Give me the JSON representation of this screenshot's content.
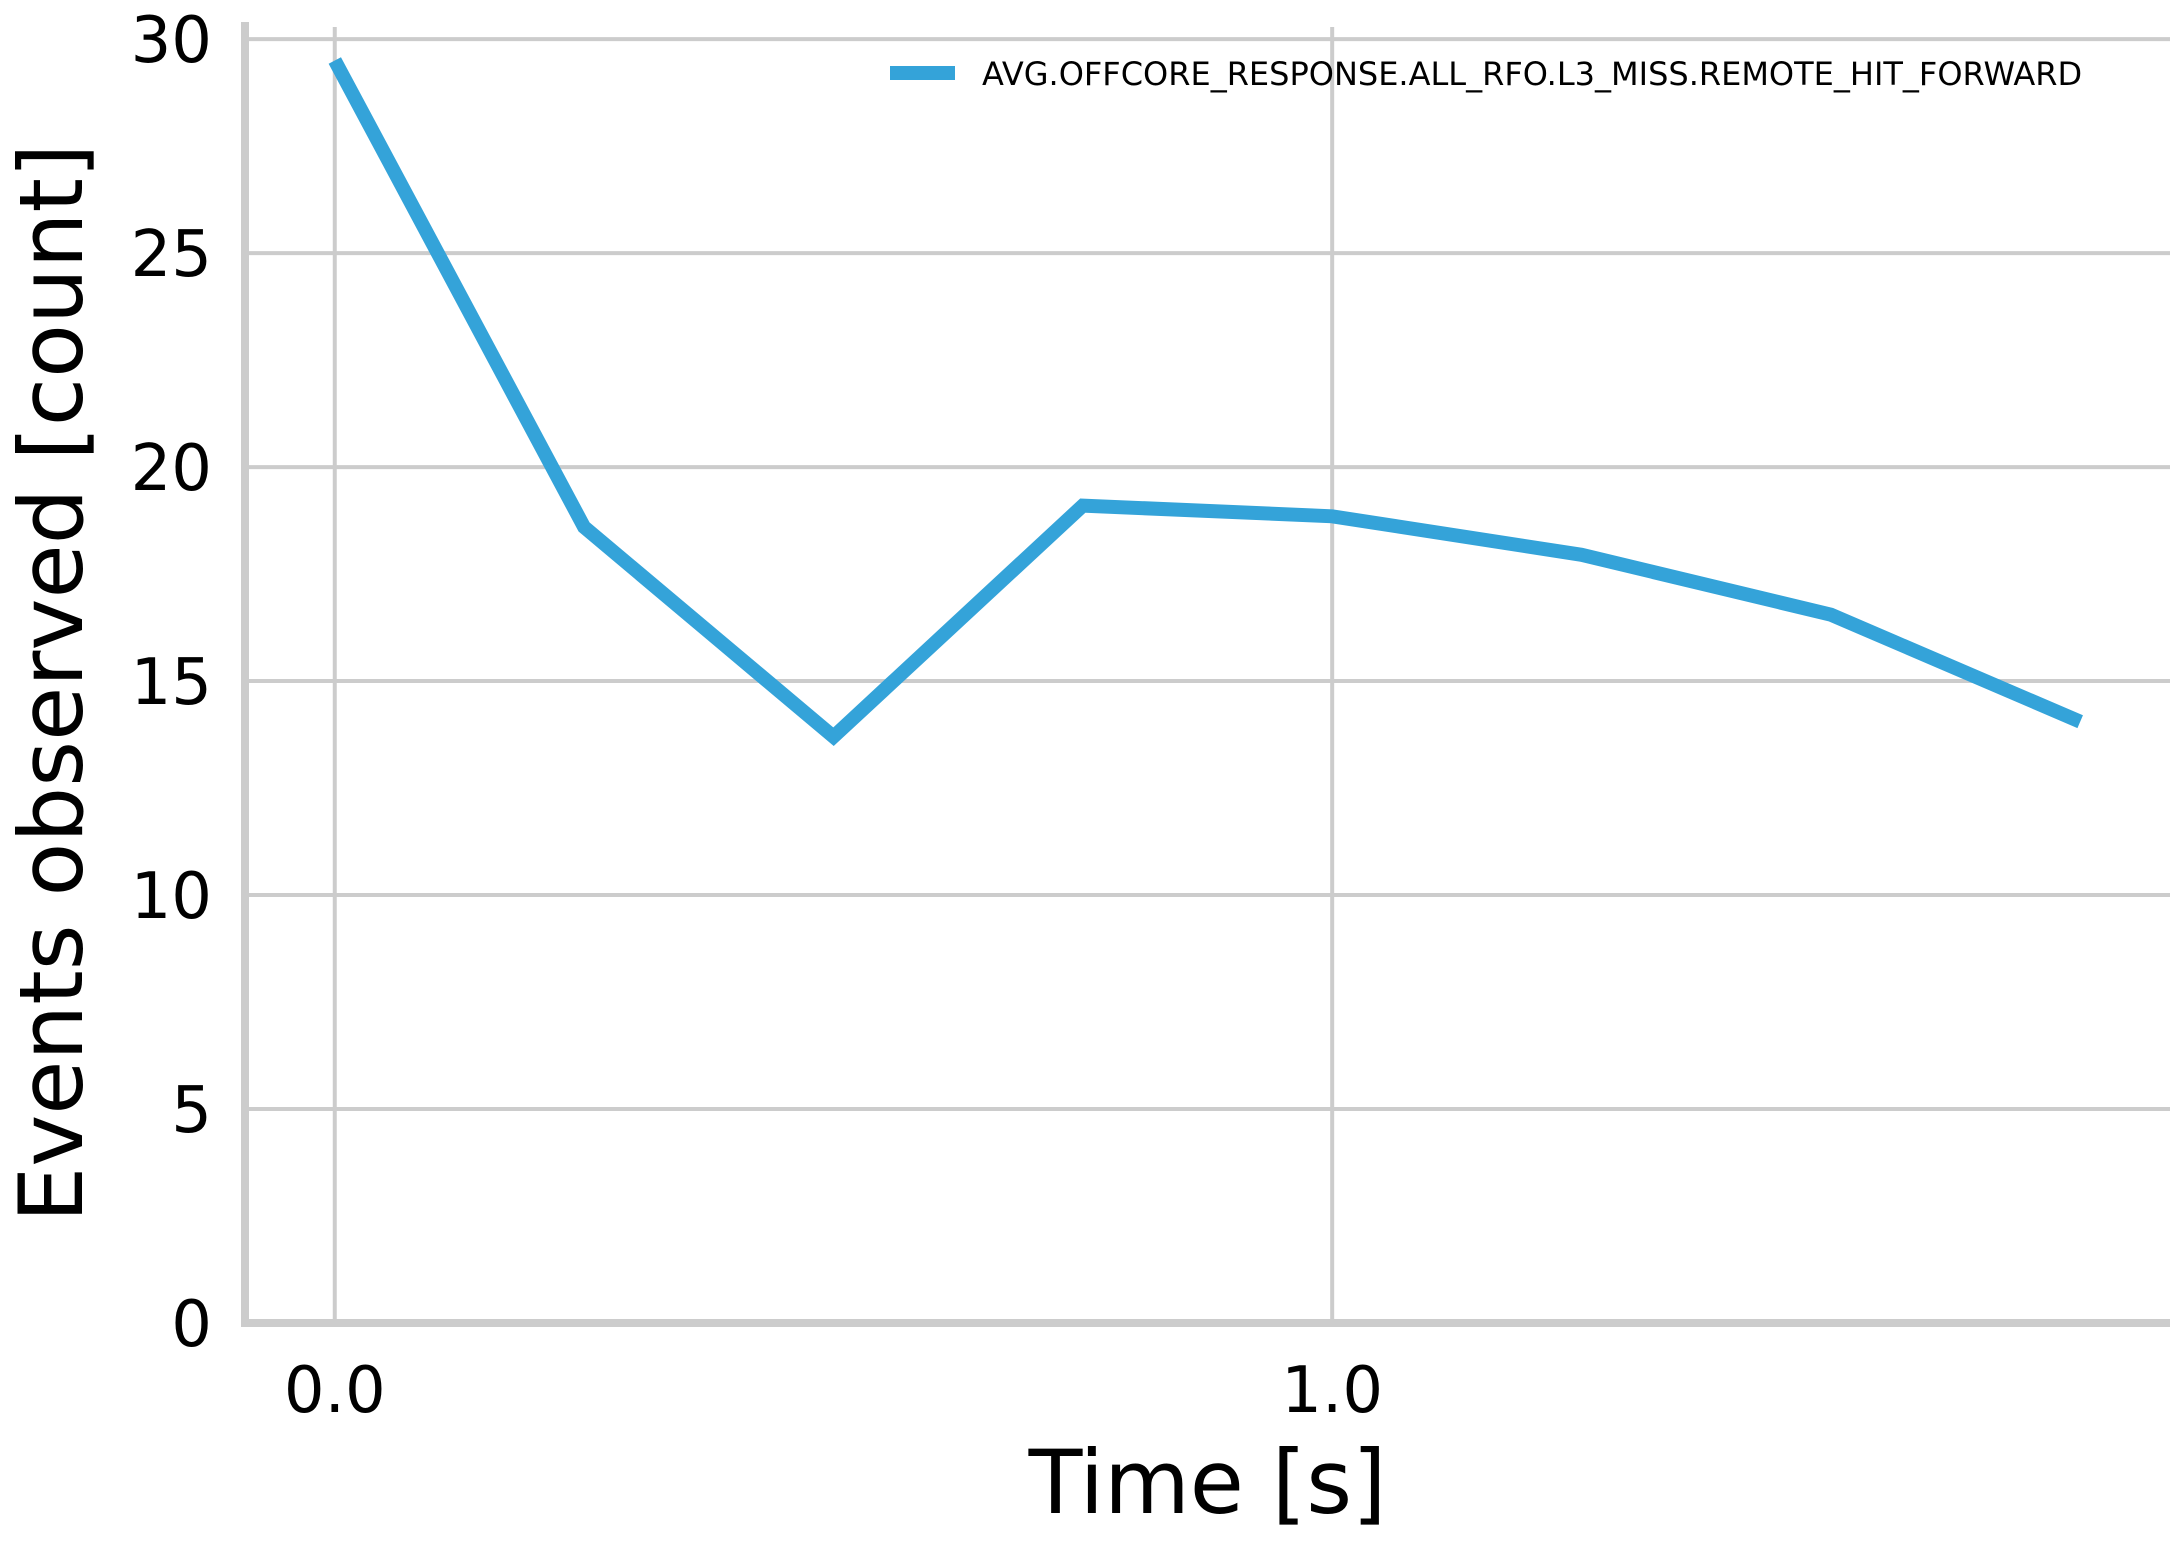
{
  "chart_data": {
    "type": "line",
    "title": "",
    "xlabel": "Time [s]",
    "ylabel": "Events observed [count]",
    "xlim": [
      -0.09,
      1.84
    ],
    "ylim": [
      0,
      30.4
    ],
    "xticks": [
      0.0,
      1.0
    ],
    "xtick_labels": [
      "0.0",
      "1.0"
    ],
    "yticks": [
      0,
      5,
      10,
      15,
      20,
      25,
      30
    ],
    "ytick_labels": [
      "0",
      "5",
      "10",
      "15",
      "20",
      "25",
      "30"
    ],
    "grid": true,
    "legend_position": "top-right",
    "series": [
      {
        "name": "AVG.OFFCORE_RESPONSE.ALL_RFO.L3_MISS.REMOTE_HIT_FORWARD",
        "color": "#34a3d9",
        "x": [
          0.0,
          0.25,
          0.5,
          0.75,
          1.0,
          1.25,
          1.5,
          1.75
        ],
        "y": [
          29.5,
          18.6,
          13.7,
          19.1,
          18.85,
          17.95,
          16.55,
          14.05
        ]
      }
    ]
  },
  "colors": {
    "axis": "#cccccc",
    "grid": "#cccccc"
  }
}
